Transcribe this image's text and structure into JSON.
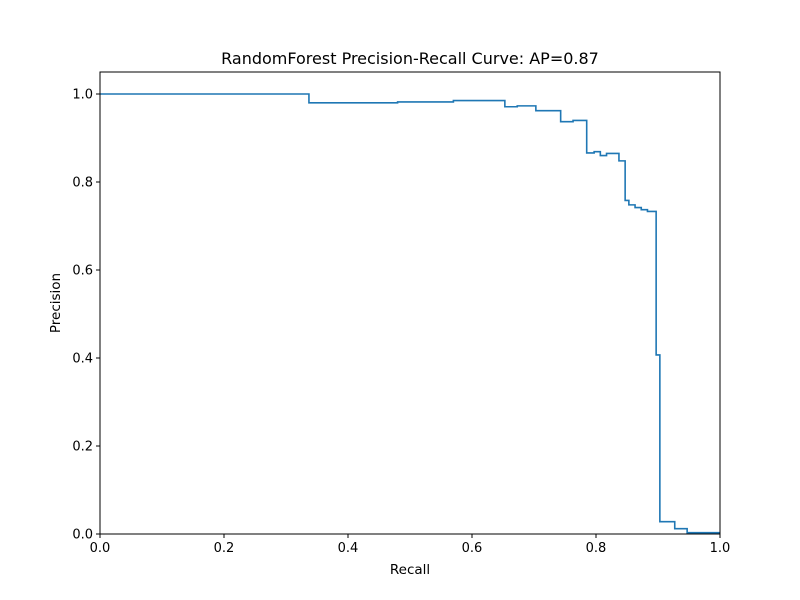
{
  "chart_data": {
    "type": "line",
    "drawstyle": "steps-post",
    "title": "RandomForest Precision-Recall Curve: AP=0.87",
    "xlabel": "Recall",
    "ylabel": "Precision",
    "xlim": [
      0.0,
      1.0
    ],
    "ylim": [
      0.0,
      1.05
    ],
    "xticks": [
      0.0,
      0.2,
      0.4,
      0.6,
      0.8,
      1.0
    ],
    "xtick_labels": [
      "0.0",
      "0.2",
      "0.4",
      "0.6",
      "0.8",
      "1.0"
    ],
    "yticks": [
      0.0,
      0.2,
      0.4,
      0.6,
      0.8,
      1.0
    ],
    "ytick_labels": [
      "0.0",
      "0.2",
      "0.4",
      "0.6",
      "0.8",
      "1.0"
    ],
    "grid": false,
    "series": [
      {
        "name": "precision-recall",
        "color": "#1f77b4",
        "recall": [
          0.0,
          0.337,
          0.48,
          0.57,
          0.653,
          0.673,
          0.703,
          0.743,
          0.763,
          0.785,
          0.797,
          0.807,
          0.817,
          0.837,
          0.847,
          0.853,
          0.863,
          0.873,
          0.883,
          0.897,
          0.903,
          0.907,
          0.927,
          0.947,
          1.0
        ],
        "precision": [
          1.0,
          0.98,
          0.982,
          0.985,
          0.971,
          0.973,
          0.962,
          0.937,
          0.94,
          0.866,
          0.869,
          0.86,
          0.865,
          0.848,
          0.758,
          0.748,
          0.742,
          0.737,
          0.733,
          0.407,
          0.028,
          0.028,
          0.012,
          0.003,
          0.003
        ]
      }
    ]
  }
}
